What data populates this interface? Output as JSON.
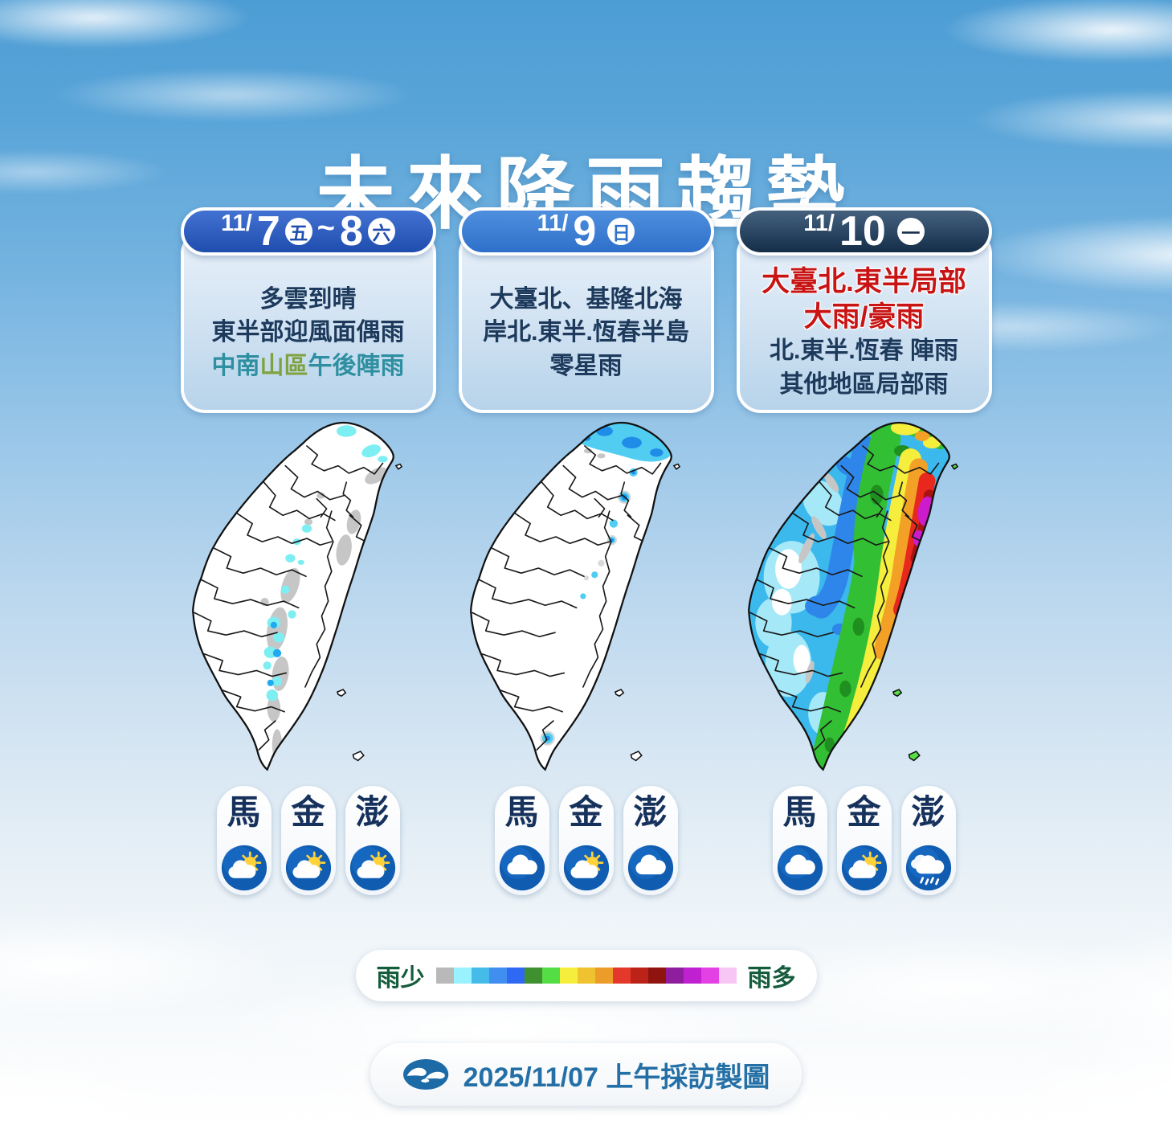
{
  "page": {
    "title": "未來降雨趨勢"
  },
  "panels": [
    {
      "header": {
        "prefix": "11/",
        "day": "7",
        "weekday": "五",
        "separator": "~",
        "day2": "8",
        "weekday2": "六"
      },
      "desc": {
        "line1": "多雲到晴",
        "line2": "東半部迎風面偶雨",
        "line3a": "中南",
        "line3b": "山區",
        "line3c": "午後陣雨"
      },
      "islands": [
        {
          "label": "馬",
          "icon": "partly-cloudy"
        },
        {
          "label": "金",
          "icon": "partly-cloudy"
        },
        {
          "label": "澎",
          "icon": "partly-cloudy"
        }
      ]
    },
    {
      "header": {
        "prefix": "11/",
        "day": "9",
        "weekday": "日"
      },
      "desc": {
        "line1": "大臺北、基隆北海",
        "line2": "岸北.東半.恆春半島",
        "line3": "零星雨"
      },
      "islands": [
        {
          "label": "馬",
          "icon": "cloudy"
        },
        {
          "label": "金",
          "icon": "partly-cloudy"
        },
        {
          "label": "澎",
          "icon": "cloudy"
        }
      ]
    },
    {
      "header": {
        "prefix": "11/",
        "day": "10",
        "weekday": "一"
      },
      "desc": {
        "alert1": "大臺北.東半局部",
        "alert2": "大雨/豪雨",
        "line1": "北.東半.恆春 陣雨",
        "line2": "其他地區局部雨"
      },
      "islands": [
        {
          "label": "馬",
          "icon": "cloudy"
        },
        {
          "label": "金",
          "icon": "partly-cloudy"
        },
        {
          "label": "澎",
          "icon": "rain"
        }
      ]
    }
  ],
  "legend": {
    "label_left": "雨少",
    "label_right": "雨多",
    "colors": [
      "#b9b9b9",
      "#98f2ff",
      "#45bbea",
      "#3f8ef0",
      "#2f68f2",
      "#3f9130",
      "#55dd45",
      "#f6ee3d",
      "#eec32f",
      "#ec9c28",
      "#e4382a",
      "#bc2318",
      "#8f1410",
      "#8f1e9e",
      "#bf21d0",
      "#e341e3",
      "#f7c6f4"
    ]
  },
  "footer": {
    "caption": "2025/11/07 上午採訪製圖",
    "logo_icon": "cwa-logo"
  },
  "colors": {
    "panel1_header": "#1f4dae",
    "panel2_header": "#2e70ca",
    "panel3_header": "#142e4a",
    "text_navy": "#1d3a5c",
    "alert_red": "#c81414",
    "teal": "#2d8fa0",
    "olive": "#7fa23f",
    "legend_text": "#155c3c",
    "footer_text": "#2470a6",
    "icon_circle_blue": "#0f5cb0",
    "sun_yellow": "#ffd23a"
  }
}
